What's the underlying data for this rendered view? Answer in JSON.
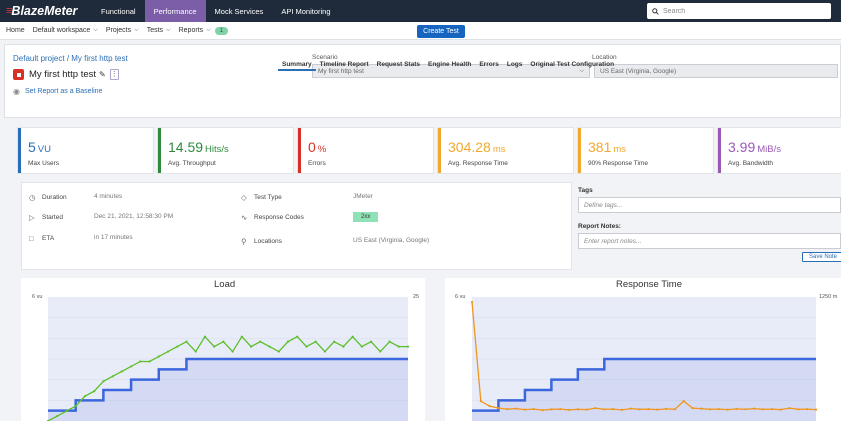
{
  "app": {
    "logo_text": "BlazeMeter",
    "nav": [
      {
        "label": "Functional",
        "active": false
      },
      {
        "label": "Performance",
        "active": true
      },
      {
        "label": "Mock Services",
        "active": false
      },
      {
        "label": "API Monitoring",
        "active": false
      }
    ],
    "search_placeholder": "Search"
  },
  "subnav": {
    "home": "Home",
    "workspace": "Default workspace",
    "projects": "Projects",
    "tests": "Tests",
    "reports": "Reports",
    "reports_count": "1",
    "create_test": "Create Test"
  },
  "header": {
    "breadcrumb_project": "Default project",
    "breadcrumb_sep": " / ",
    "breadcrumb_test": "My first http test",
    "test_name": "My first http test",
    "baseline_link": "Set Report as a Baseline",
    "scenario_label": "Scenario",
    "scenario_value": "My first http test",
    "location_label": "Location",
    "location_value": "US East (Virginia, Google)"
  },
  "tabs": [
    {
      "label": "Summary",
      "active": true
    },
    {
      "label": "Timeline Report",
      "active": false
    },
    {
      "label": "Request Stats",
      "active": false
    },
    {
      "label": "Engine Health",
      "active": false
    },
    {
      "label": "Errors",
      "active": false
    },
    {
      "label": "Logs",
      "active": false
    },
    {
      "label": "Original Test Configuration",
      "active": false
    }
  ],
  "kpis": [
    {
      "value": "5",
      "unit": "VU",
      "label": "Max Users",
      "color": "#2a6fb5"
    },
    {
      "value": "14.59",
      "unit": "Hits/s",
      "label": "Avg. Throughput",
      "color": "#2e8b3e"
    },
    {
      "value": "0",
      "unit": "%",
      "label": "Errors",
      "color": "#d93026"
    },
    {
      "value": "304.28",
      "unit": "ms",
      "label": "Avg. Response Time",
      "color": "#f0a92e"
    },
    {
      "value": "381",
      "unit": "ms",
      "label": "90% Response Time",
      "color": "#f0a92e"
    },
    {
      "value": "3.99",
      "unit": "MiB/s",
      "label": "Avg. Bandwidth",
      "color": "#9b59b6"
    }
  ],
  "details": {
    "duration_label": "Duration",
    "duration_value": "4 minutes",
    "started_label": "Started",
    "started_value": "Dec 21, 2021, 12:58:30 PM",
    "eta_label": "ETA",
    "eta_value": "in 17 minutes",
    "test_type_label": "Test Type",
    "test_type_value": "JMeter",
    "response_codes_label": "Response Codes",
    "response_codes_value": "2xx",
    "locations_label": "Locations",
    "locations_value": "US East (Virginia, Google)"
  },
  "notes": {
    "tags_label": "Tags",
    "tags_placeholder": "Define tags...",
    "report_notes_label": "Report Notes:",
    "report_notes_placeholder": "Enter report notes...",
    "save_note": "Save Note"
  },
  "chart_data": [
    {
      "type": "line",
      "title": "Load",
      "left_axis_top": "6 vu",
      "right_axis_top": "25",
      "y_left_range": [
        0,
        6
      ],
      "y_right_range": [
        0,
        25
      ],
      "series": [
        {
          "color": "#3b66dd",
          "axis": "left",
          "values": [
            0.5,
            0.5,
            0.5,
            1,
            1,
            1,
            1.5,
            1.5,
            1.5,
            2,
            2,
            2,
            2.5,
            2.5,
            2.5,
            3,
            3,
            3,
            3,
            3,
            3,
            3,
            3,
            3,
            3,
            3,
            3,
            3,
            3,
            3,
            3,
            3,
            3,
            3,
            3,
            3,
            3,
            3,
            3,
            3
          ]
        },
        {
          "color": "#5cbf2a",
          "axis": "right",
          "values": [
            0,
            1,
            2,
            3,
            5,
            6,
            8,
            9,
            10,
            11,
            12,
            12,
            13,
            14,
            15,
            16,
            14,
            17,
            15,
            16,
            14,
            17,
            15,
            16,
            15,
            14,
            16,
            17,
            15,
            16,
            14,
            16,
            15,
            17,
            15,
            16,
            14,
            16,
            15,
            15
          ]
        }
      ]
    },
    {
      "type": "line",
      "title": "Response Time",
      "left_axis_top": "6 vu",
      "right_axis_top": "1250 m",
      "y_left_range": [
        0,
        6
      ],
      "y_right_range": [
        0,
        1250
      ],
      "series": [
        {
          "color": "#3b66dd",
          "axis": "left",
          "values": [
            0.5,
            0.5,
            0.5,
            1,
            1,
            1,
            1.5,
            1.5,
            1.5,
            2,
            2,
            2,
            2.5,
            2.5,
            2.5,
            3,
            3,
            3,
            3,
            3,
            3,
            3,
            3,
            3,
            3,
            3,
            3,
            3,
            3,
            3,
            3,
            3,
            3,
            3,
            3,
            3,
            3,
            3,
            3,
            3
          ]
        },
        {
          "color": "#f0961e",
          "axis": "right",
          "values": [
            1200,
            200,
            150,
            130,
            120,
            125,
            115,
            120,
            110,
            118,
            120,
            112,
            118,
            115,
            130,
            118,
            120,
            112,
            125,
            118,
            120,
            115,
            122,
            118,
            200,
            130,
            125,
            118,
            120,
            115,
            122,
            118,
            125,
            118,
            120,
            115,
            130,
            118,
            120,
            115
          ]
        }
      ]
    }
  ]
}
